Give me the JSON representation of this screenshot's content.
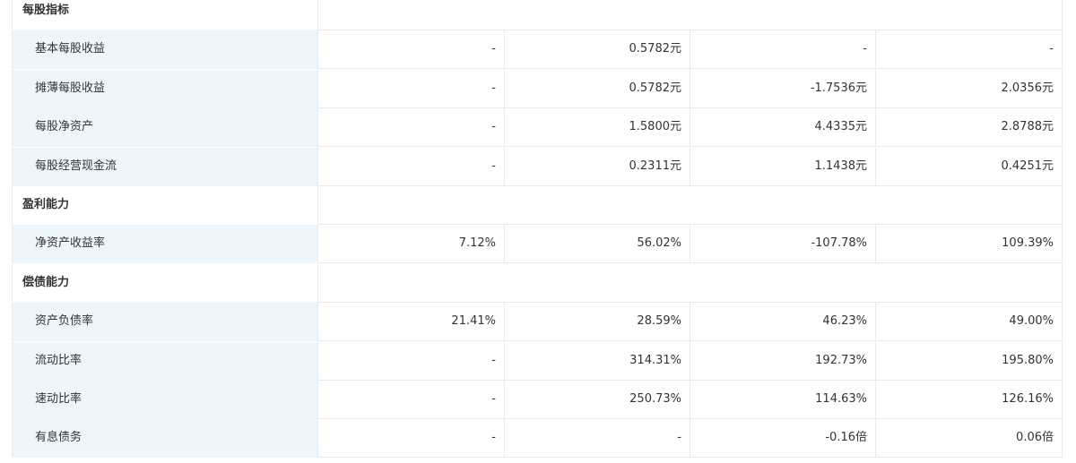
{
  "table": {
    "sections": [
      {
        "title": "每股指标",
        "rows": [
          {
            "label": "基本每股收益",
            "values": [
              "-",
              "0.5782元",
              "-",
              "-"
            ]
          },
          {
            "label": "摊薄每股收益",
            "values": [
              "-",
              "0.5782元",
              "-1.7536元",
              "2.0356元"
            ]
          },
          {
            "label": "每股净资产",
            "values": [
              "-",
              "1.5800元",
              "4.4335元",
              "2.8788元"
            ]
          },
          {
            "label": "每股经营现金流",
            "values": [
              "-",
              "0.2311元",
              "1.1438元",
              "0.4251元"
            ]
          }
        ]
      },
      {
        "title": "盈利能力",
        "rows": [
          {
            "label": "净资产收益率",
            "values": [
              "7.12%",
              "56.02%",
              "-107.78%",
              "109.39%"
            ]
          }
        ]
      },
      {
        "title": "偿债能力",
        "rows": [
          {
            "label": "资产负债率",
            "values": [
              "21.41%",
              "28.59%",
              "46.23%",
              "49.00%"
            ]
          },
          {
            "label": "流动比率",
            "values": [
              "-",
              "314.31%",
              "192.73%",
              "195.80%"
            ]
          },
          {
            "label": "速动比率",
            "values": [
              "-",
              "250.73%",
              "114.63%",
              "126.16%"
            ]
          },
          {
            "label": "有息债务",
            "values": [
              "-",
              "-",
              "-0.16倍",
              "0.06倍"
            ]
          }
        ]
      }
    ]
  }
}
